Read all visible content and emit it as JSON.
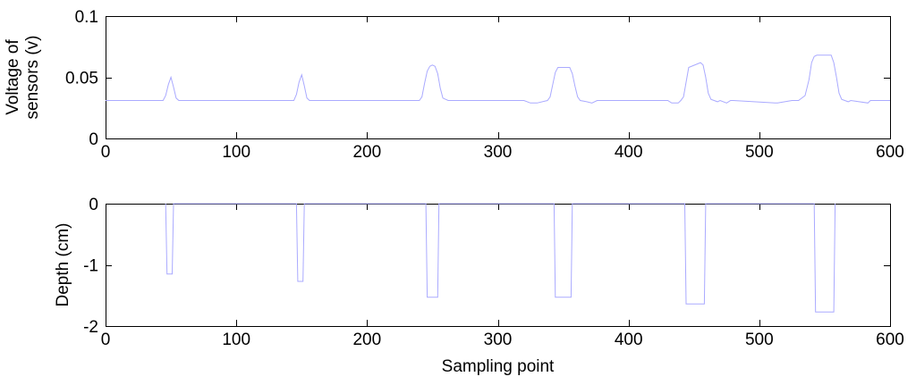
{
  "chart_data": [
    {
      "type": "line",
      "title": "",
      "xlabel": "",
      "ylabel_lines": [
        "Voltage of",
        "sensors (v)"
      ],
      "xlim": [
        0,
        600
      ],
      "ylim": [
        0,
        0.1
      ],
      "xticks": [
        0,
        100,
        200,
        300,
        400,
        500,
        600
      ],
      "xtick_labels": [
        "0",
        "100",
        "200",
        "300",
        "400",
        "500",
        "600"
      ],
      "yticks": [
        0,
        0.05,
        0.1
      ],
      "ytick_labels": [
        "0",
        "0.05",
        "0.1"
      ],
      "grid": false,
      "color": "#aaaaff",
      "series": [
        {
          "x": [
            0,
            44,
            46,
            48,
            50,
            52,
            54,
            56,
            100,
            144,
            146,
            148,
            150,
            152,
            154,
            156,
            240,
            242,
            244,
            246,
            248,
            250,
            252,
            254,
            256,
            258,
            262,
            320,
            325,
            330,
            338,
            340,
            342,
            344,
            346,
            355,
            357,
            359,
            361,
            363,
            368,
            372,
            376,
            380,
            430,
            433,
            438,
            440,
            442,
            444,
            446,
            455,
            457,
            459,
            461,
            463,
            468,
            470,
            475,
            478,
            480,
            512,
            514,
            525,
            530,
            535,
            538,
            540,
            542,
            544,
            546,
            555,
            557,
            559,
            561,
            563,
            568,
            570,
            583,
            585,
            600
          ],
          "y": [
            0.031,
            0.031,
            0.035,
            0.044,
            0.05,
            0.042,
            0.033,
            0.031,
            0.031,
            0.031,
            0.036,
            0.046,
            0.052,
            0.043,
            0.033,
            0.031,
            0.031,
            0.034,
            0.045,
            0.055,
            0.059,
            0.06,
            0.059,
            0.053,
            0.041,
            0.033,
            0.031,
            0.031,
            0.029,
            0.029,
            0.031,
            0.034,
            0.044,
            0.054,
            0.058,
            0.058,
            0.053,
            0.043,
            0.034,
            0.031,
            0.03,
            0.029,
            0.031,
            0.031,
            0.031,
            0.029,
            0.029,
            0.031,
            0.034,
            0.046,
            0.058,
            0.062,
            0.06,
            0.05,
            0.037,
            0.032,
            0.03,
            0.031,
            0.029,
            0.031,
            0.031,
            0.029,
            0.029,
            0.031,
            0.031,
            0.035,
            0.048,
            0.062,
            0.067,
            0.068,
            0.068,
            0.068,
            0.062,
            0.05,
            0.037,
            0.032,
            0.03,
            0.031,
            0.029,
            0.031,
            0.031
          ]
        }
      ]
    },
    {
      "type": "line",
      "title": "",
      "xlabel": "Sampling point",
      "ylabel_lines": [
        "Depth (cm)"
      ],
      "xlim": [
        0,
        600
      ],
      "ylim": [
        -2,
        0
      ],
      "xticks": [
        0,
        100,
        200,
        300,
        400,
        500,
        600
      ],
      "xtick_labels": [
        "0",
        "100",
        "200",
        "300",
        "400",
        "500",
        "600"
      ],
      "yticks": [
        -2,
        -1,
        0
      ],
      "ytick_labels": [
        "-2",
        "-1",
        "0"
      ],
      "grid": false,
      "color": "#aaaaff",
      "series": [
        {
          "x": [
            46,
            47,
            51,
            52,
            146,
            147,
            151,
            152,
            245,
            246,
            254,
            255,
            343,
            344,
            356,
            357,
            443,
            444,
            458,
            459,
            542,
            543,
            557,
            558
          ],
          "y": [
            0,
            -1.15,
            -1.15,
            0,
            0,
            -1.27,
            -1.27,
            0,
            0,
            -1.53,
            -1.53,
            0,
            0,
            -1.53,
            -1.53,
            0,
            0,
            -1.64,
            -1.64,
            0,
            0,
            -1.77,
            -1.77,
            0
          ]
        }
      ]
    }
  ]
}
